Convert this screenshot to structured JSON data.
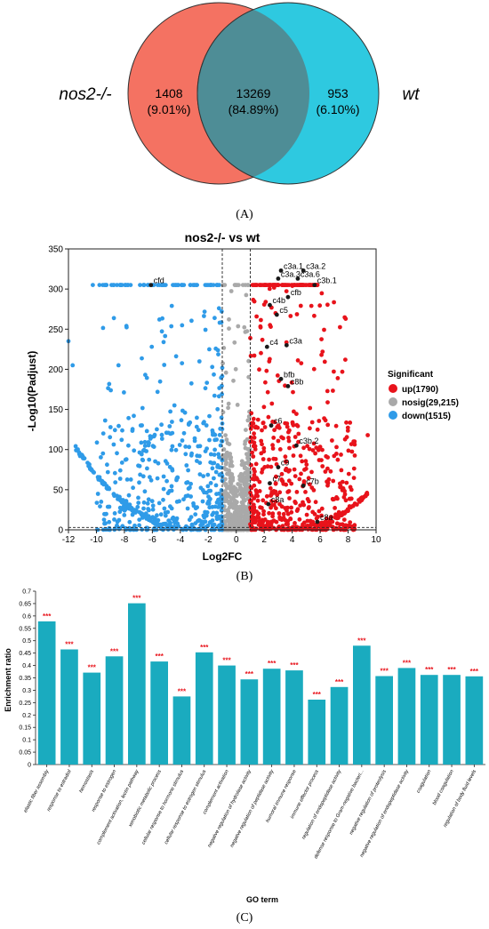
{
  "colors": {
    "venn_left": "#f47262",
    "venn_right": "#2ec9e0",
    "venn_overlap": "#4e8d96",
    "up": "#e8131b",
    "nosig": "#a9a9a9",
    "down": "#2f9be8",
    "highlight": "#1a1a1a",
    "bar": "#1aabbf",
    "significance": "#e8131b"
  },
  "panels": {
    "A": "(A)",
    "B": "(B)",
    "C": "(C)"
  },
  "chart_data": [
    {
      "type": "venn",
      "sets": [
        {
          "name": "nos2-/-",
          "only_count": "1408",
          "only_pct": "(9.01%)"
        },
        {
          "name": "wt",
          "only_count": "953",
          "only_pct": "(6.10%)"
        }
      ],
      "overlap": {
        "count": "13269",
        "pct": "(84.89%)"
      }
    },
    {
      "type": "scatter",
      "title": "nos2-/- vs wt",
      "xlabel": "Log2FC",
      "ylabel": "-Log10(Padjust)",
      "xlim": [
        -12,
        10
      ],
      "ylim": [
        0,
        350
      ],
      "xticks": [
        -12,
        -10,
        -8,
        -6,
        -4,
        -2,
        0,
        2,
        4,
        6,
        8,
        10
      ],
      "yticks": [
        0,
        50,
        100,
        150,
        200,
        250,
        300,
        350
      ],
      "vlines": [
        -1,
        1
      ],
      "hline": 3,
      "cap": 305,
      "legend": {
        "title": "Significant",
        "placement": "right",
        "entries": [
          {
            "key": "up",
            "label": "up(1790)"
          },
          {
            "key": "nosig",
            "label": "nosig(29,215)"
          },
          {
            "key": "down",
            "label": "down(1515)"
          }
        ]
      },
      "labeled_genes": [
        {
          "name": "cfd",
          "x": -6.1,
          "y": 305
        },
        {
          "name": "c3a.1",
          "x": 3.2,
          "y": 323
        },
        {
          "name": "c3a.2",
          "x": 4.8,
          "y": 323
        },
        {
          "name": "c3a.3",
          "x": 3.0,
          "y": 313
        },
        {
          "name": "c3a.6",
          "x": 4.4,
          "y": 313
        },
        {
          "name": "c3b.1",
          "x": 5.6,
          "y": 305
        },
        {
          "name": "cfb",
          "x": 3.7,
          "y": 290
        },
        {
          "name": "c4b",
          "x": 2.4,
          "y": 280
        },
        {
          "name": "c5",
          "x": 2.9,
          "y": 268
        },
        {
          "name": "c4",
          "x": 2.2,
          "y": 228
        },
        {
          "name": "c3a",
          "x": 3.6,
          "y": 230
        },
        {
          "name": "bfb",
          "x": 3.2,
          "y": 188
        },
        {
          "name": "c8b",
          "x": 3.7,
          "y": 179
        },
        {
          "name": "c6",
          "x": 2.5,
          "y": 130
        },
        {
          "name": "c3b.2",
          "x": 4.3,
          "y": 105
        },
        {
          "name": "c9",
          "x": 3.0,
          "y": 78
        },
        {
          "name": "c7",
          "x": 2.4,
          "y": 58
        },
        {
          "name": "c7b",
          "x": 4.8,
          "y": 55
        },
        {
          "name": "c8a",
          "x": 2.3,
          "y": 32
        },
        {
          "name": "c8a",
          "x": 5.8,
          "y": 10
        }
      ]
    },
    {
      "type": "bar",
      "xlabel": "GO term",
      "ylabel": "Enrichment ratio",
      "ylim": [
        0,
        0.7
      ],
      "yticks": [
        0,
        0.05,
        0.1,
        0.15,
        0.2,
        0.25,
        0.3,
        0.35,
        0.4,
        0.45,
        0.5,
        0.55,
        0.6,
        0.65,
        0.7
      ],
      "categories": [
        "elastic fiber assembly",
        "response to estradiol",
        "hemostasis",
        "response to estrogen",
        "complement activation, lectin pathway",
        "xenobiotic metabolic process",
        "cellular response to hormone stimulus",
        "cellular response to estrogen stimulus",
        "complement activation",
        "negative regulation of hydrolase activity",
        "negative regulation of peptidase activity",
        "humoral immune response",
        "immune effector process",
        "regulation of endopeptidase activity",
        "defense response to Gram-negative bacteri...",
        "negative regulation of proteolysis",
        "negative regulation of endopeptidase activity",
        "coagulation",
        "blood coagulation",
        "regulation of body fluid levels"
      ],
      "values": [
        0.578,
        0.465,
        0.371,
        0.437,
        0.651,
        0.416,
        0.275,
        0.453,
        0.4,
        0.344,
        0.387,
        0.38,
        0.262,
        0.313,
        0.48,
        0.357,
        0.39,
        0.362,
        0.362,
        0.356
      ],
      "significance": [
        "***",
        "***",
        "***",
        "***",
        "***",
        "***",
        "***",
        "***",
        "***",
        "***",
        "***",
        "***",
        "***",
        "***",
        "***",
        "***",
        "***",
        "***",
        "***",
        "***"
      ]
    }
  ]
}
